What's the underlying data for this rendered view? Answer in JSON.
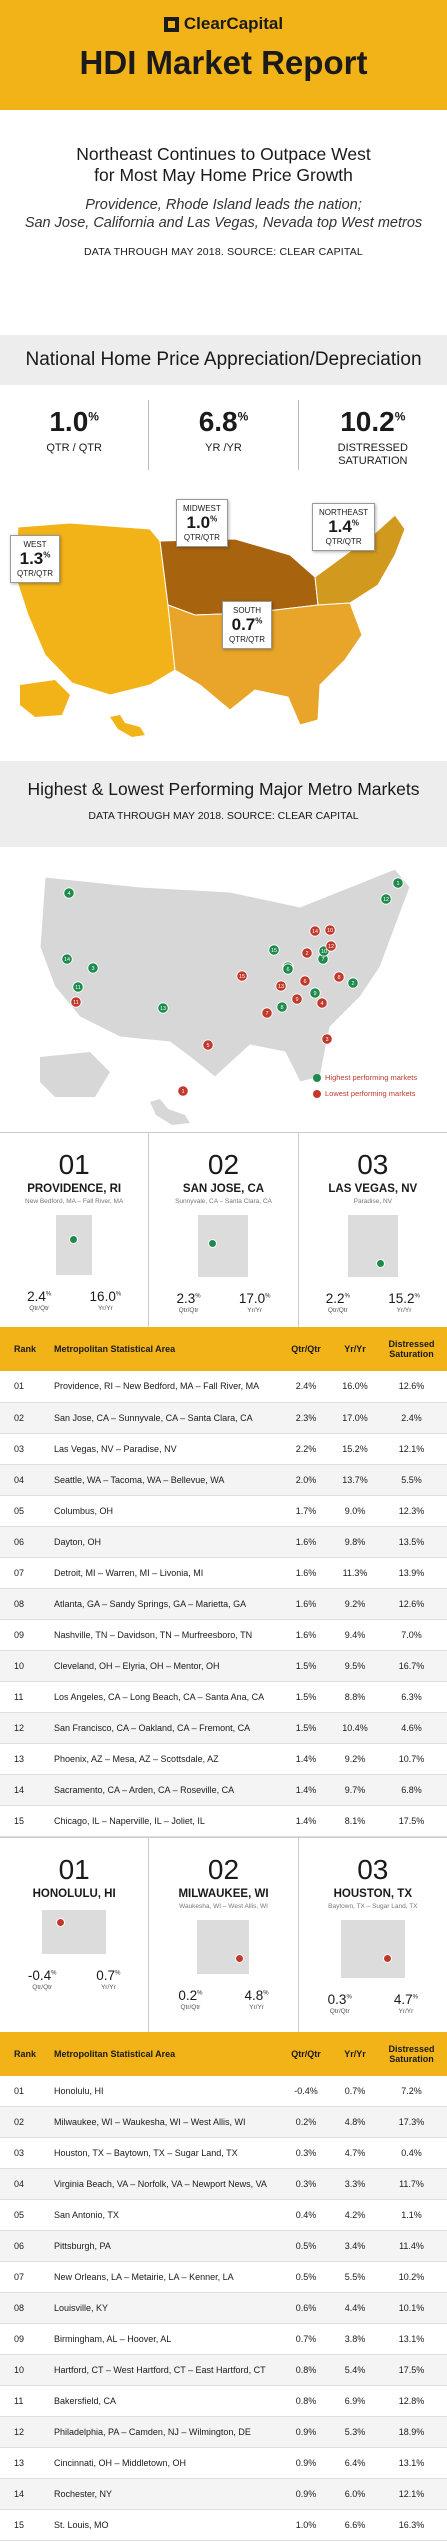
{
  "header": {
    "logo": "ClearCapital",
    "title": "HDI Market Report"
  },
  "intro": {
    "headline1": "Northeast Continues to Outpace West",
    "headline2": "for Most May Home Price Growth",
    "sub1": "Providence, Rhode Island leads the nation;",
    "sub2": "San Jose, California and Las Vegas, Nevada top West metros",
    "source": "DATA THROUGH MAY 2018. SOURCE: CLEAR CAPITAL"
  },
  "national": {
    "title": "National Home Price Appreciation/Depreciation",
    "stats": [
      {
        "value": "1.0",
        "unit": "%",
        "label1": "QTR / QTR",
        "label2": ""
      },
      {
        "value": "6.8",
        "unit": "%",
        "label1": "YR /YR",
        "label2": ""
      },
      {
        "value": "10.2",
        "unit": "%",
        "label1": "DISTRESSED",
        "label2": "SATURATION"
      }
    ],
    "regions": [
      {
        "name": "WEST",
        "value": "1.3",
        "unit": "%",
        "label": "QTR/QTR"
      },
      {
        "name": "MIDWEST",
        "value": "1.0",
        "unit": "%",
        "label": "QTR/QTR"
      },
      {
        "name": "NORTHEAST",
        "value": "1.4",
        "unit": "%",
        "label": "QTR/QTR"
      },
      {
        "name": "SOUTH",
        "value": "0.7",
        "unit": "%",
        "label": "QTR/QTR"
      }
    ]
  },
  "metro": {
    "title": "Highest & Lowest Performing Major Metro Markets",
    "source": "DATA THROUGH MAY 2018. SOURCE: CLEAR CAPITAL",
    "legend_high": "Highest performing markets",
    "legend_low": "Lowest performing markets",
    "high_color": "#1e8a4c",
    "low_color": "#c0392b",
    "markers": [
      {
        "n": "1",
        "type": "high"
      },
      {
        "n": "2",
        "type": "high"
      },
      {
        "n": "3",
        "type": "high"
      },
      {
        "n": "4",
        "type": "high"
      },
      {
        "n": "5",
        "type": "high"
      },
      {
        "n": "6",
        "type": "high"
      },
      {
        "n": "7",
        "type": "high"
      },
      {
        "n": "8",
        "type": "high"
      },
      {
        "n": "9",
        "type": "high"
      },
      {
        "n": "10",
        "type": "high"
      },
      {
        "n": "11",
        "type": "high"
      },
      {
        "n": "12",
        "type": "high"
      },
      {
        "n": "13",
        "type": "high"
      },
      {
        "n": "14",
        "type": "high"
      },
      {
        "n": "15",
        "type": "high"
      },
      {
        "n": "1",
        "type": "low"
      },
      {
        "n": "2",
        "type": "low"
      },
      {
        "n": "3",
        "type": "low"
      },
      {
        "n": "4",
        "type": "low"
      },
      {
        "n": "5",
        "type": "low"
      },
      {
        "n": "6",
        "type": "low"
      },
      {
        "n": "7",
        "type": "low"
      },
      {
        "n": "8",
        "type": "low"
      },
      {
        "n": "9",
        "type": "low"
      },
      {
        "n": "10",
        "type": "low"
      },
      {
        "n": "11",
        "type": "low"
      },
      {
        "n": "12",
        "type": "low"
      },
      {
        "n": "13",
        "type": "low"
      },
      {
        "n": "14",
        "type": "low"
      },
      {
        "n": "15",
        "type": "low"
      }
    ]
  },
  "top_cards": [
    {
      "num": "01",
      "city": "PROVIDENCE, RI",
      "msa": "New Bedford, MA – Fall River, MA",
      "qtr": "2.4",
      "yr": "16.0",
      "unit": "%",
      "qtr_lbl": "Qtr/Qtr",
      "yr_lbl": "Yr/Yr"
    },
    {
      "num": "02",
      "city": "SAN JOSE, CA",
      "msa": "Sunnyvale, CA – Santa Clara, CA",
      "qtr": "2.3",
      "yr": "17.0",
      "unit": "%",
      "qtr_lbl": "Qtr/Qtr",
      "yr_lbl": "Yr/Yr"
    },
    {
      "num": "03",
      "city": "LAS VEGAS, NV",
      "msa": "Paradise, NV",
      "qtr": "2.2",
      "yr": "15.2",
      "unit": "%",
      "qtr_lbl": "Qtr/Qtr",
      "yr_lbl": "Yr/Yr"
    }
  ],
  "table_headers": {
    "rank": "Rank",
    "msa": "Metropolitan Statistical Area",
    "qtr": "Qtr/Qtr",
    "yr": "Yr/Yr",
    "dist1": "Distressed",
    "dist2": "Saturation"
  },
  "top_table": [
    [
      "01",
      "Providence, RI – New Bedford, MA – Fall River, MA",
      "2.4%",
      "16.0%",
      "12.6%"
    ],
    [
      "02",
      "San Jose, CA – Sunnyvale, CA – Santa Clara, CA",
      "2.3%",
      "17.0%",
      "2.4%"
    ],
    [
      "03",
      "Las Vegas, NV – Paradise, NV",
      "2.2%",
      "15.2%",
      "12.1%"
    ],
    [
      "04",
      "Seattle, WA – Tacoma, WA – Bellevue, WA",
      "2.0%",
      "13.7%",
      "5.5%"
    ],
    [
      "05",
      "Columbus, OH",
      "1.7%",
      "9.0%",
      "12.3%"
    ],
    [
      "06",
      "Dayton, OH",
      "1.6%",
      "9.8%",
      "13.5%"
    ],
    [
      "07",
      "Detroit, MI – Warren, MI – Livonia, MI",
      "1.6%",
      "11.3%",
      "13.9%"
    ],
    [
      "08",
      "Atlanta, GA – Sandy Springs, GA – Marietta, GA",
      "1.6%",
      "9.2%",
      "12.6%"
    ],
    [
      "09",
      "Nashville, TN – Davidson, TN – Murfreesboro, TN",
      "1.6%",
      "9.4%",
      "7.0%"
    ],
    [
      "10",
      "Cleveland, OH – Elyria, OH – Mentor, OH",
      "1.5%",
      "9.5%",
      "16.7%"
    ],
    [
      "11",
      "Los Angeles, CA – Long Beach, CA – Santa Ana, CA",
      "1.5%",
      "8.8%",
      "6.3%"
    ],
    [
      "12",
      "San Francisco, CA – Oakland, CA – Fremont, CA",
      "1.5%",
      "10.4%",
      "4.6%"
    ],
    [
      "13",
      "Phoenix, AZ – Mesa, AZ – Scottsdale, AZ",
      "1.4%",
      "9.2%",
      "10.7%"
    ],
    [
      "14",
      "Sacramento, CA – Arden, CA – Roseville, CA",
      "1.4%",
      "9.7%",
      "6.8%"
    ],
    [
      "15",
      "Chicago, IL – Naperville, IL – Joliet, IL",
      "1.4%",
      "8.1%",
      "17.5%"
    ]
  ],
  "bottom_cards": [
    {
      "num": "01",
      "city": "HONOLULU, HI",
      "msa": "",
      "qtr": "-0.4",
      "yr": "0.7",
      "unit": "%",
      "qtr_lbl": "Qtr/Qtr",
      "yr_lbl": "Yr/Yr"
    },
    {
      "num": "02",
      "city": "MILWAUKEE, WI",
      "msa": "Waukesha, WI – West Allis, WI",
      "qtr": "0.2",
      "yr": "4.8",
      "unit": "%",
      "qtr_lbl": "Qtr/Qtr",
      "yr_lbl": "Yr/Yr"
    },
    {
      "num": "03",
      "city": "HOUSTON, TX",
      "msa": "Baytown, TX – Sugar Land, TX",
      "qtr": "0.3",
      "yr": "4.7",
      "unit": "%",
      "qtr_lbl": "Qtr/Qtr",
      "yr_lbl": "Yr/Yr"
    }
  ],
  "bottom_table": [
    [
      "01",
      "Honolulu, HI",
      "-0.4%",
      "0.7%",
      "7.2%"
    ],
    [
      "02",
      "Milwaukee, WI – Waukesha, WI – West Allis, WI",
      "0.2%",
      "4.8%",
      "17.3%"
    ],
    [
      "03",
      "Houston, TX – Baytown, TX – Sugar Land, TX",
      "0.3%",
      "4.7%",
      "0.4%"
    ],
    [
      "04",
      "Virginia Beach, VA – Norfolk, VA – Newport News, VA",
      "0.3%",
      "3.3%",
      "11.7%"
    ],
    [
      "05",
      "San Antonio, TX",
      "0.4%",
      "4.2%",
      "1.1%"
    ],
    [
      "06",
      "Pittsburgh, PA",
      "0.5%",
      "3.4%",
      "11.4%"
    ],
    [
      "07",
      "New Orleans, LA – Metairie, LA – Kenner, LA",
      "0.5%",
      "5.5%",
      "10.2%"
    ],
    [
      "08",
      "Louisville, KY",
      "0.6%",
      "4.4%",
      "10.1%"
    ],
    [
      "09",
      "Birmingham, AL – Hoover, AL",
      "0.7%",
      "3.8%",
      "13.1%"
    ],
    [
      "10",
      "Hartford, CT – West Hartford, CT – East Hartford, CT",
      "0.8%",
      "5.4%",
      "17.5%"
    ],
    [
      "11",
      "Bakersfield, CA",
      "0.8%",
      "6.9%",
      "12.8%"
    ],
    [
      "12",
      "Philadelphia, PA – Camden, NJ – Wilmington, DE",
      "0.9%",
      "5.3%",
      "18.9%"
    ],
    [
      "13",
      "Cincinnati, OH – Middletown, OH",
      "0.9%",
      "6.4%",
      "13.1%"
    ],
    [
      "14",
      "Rochester, NY",
      "0.9%",
      "6.0%",
      "12.1%"
    ],
    [
      "15",
      "St. Louis, MO",
      "1.0%",
      "6.6%",
      "16.3%"
    ]
  ]
}
